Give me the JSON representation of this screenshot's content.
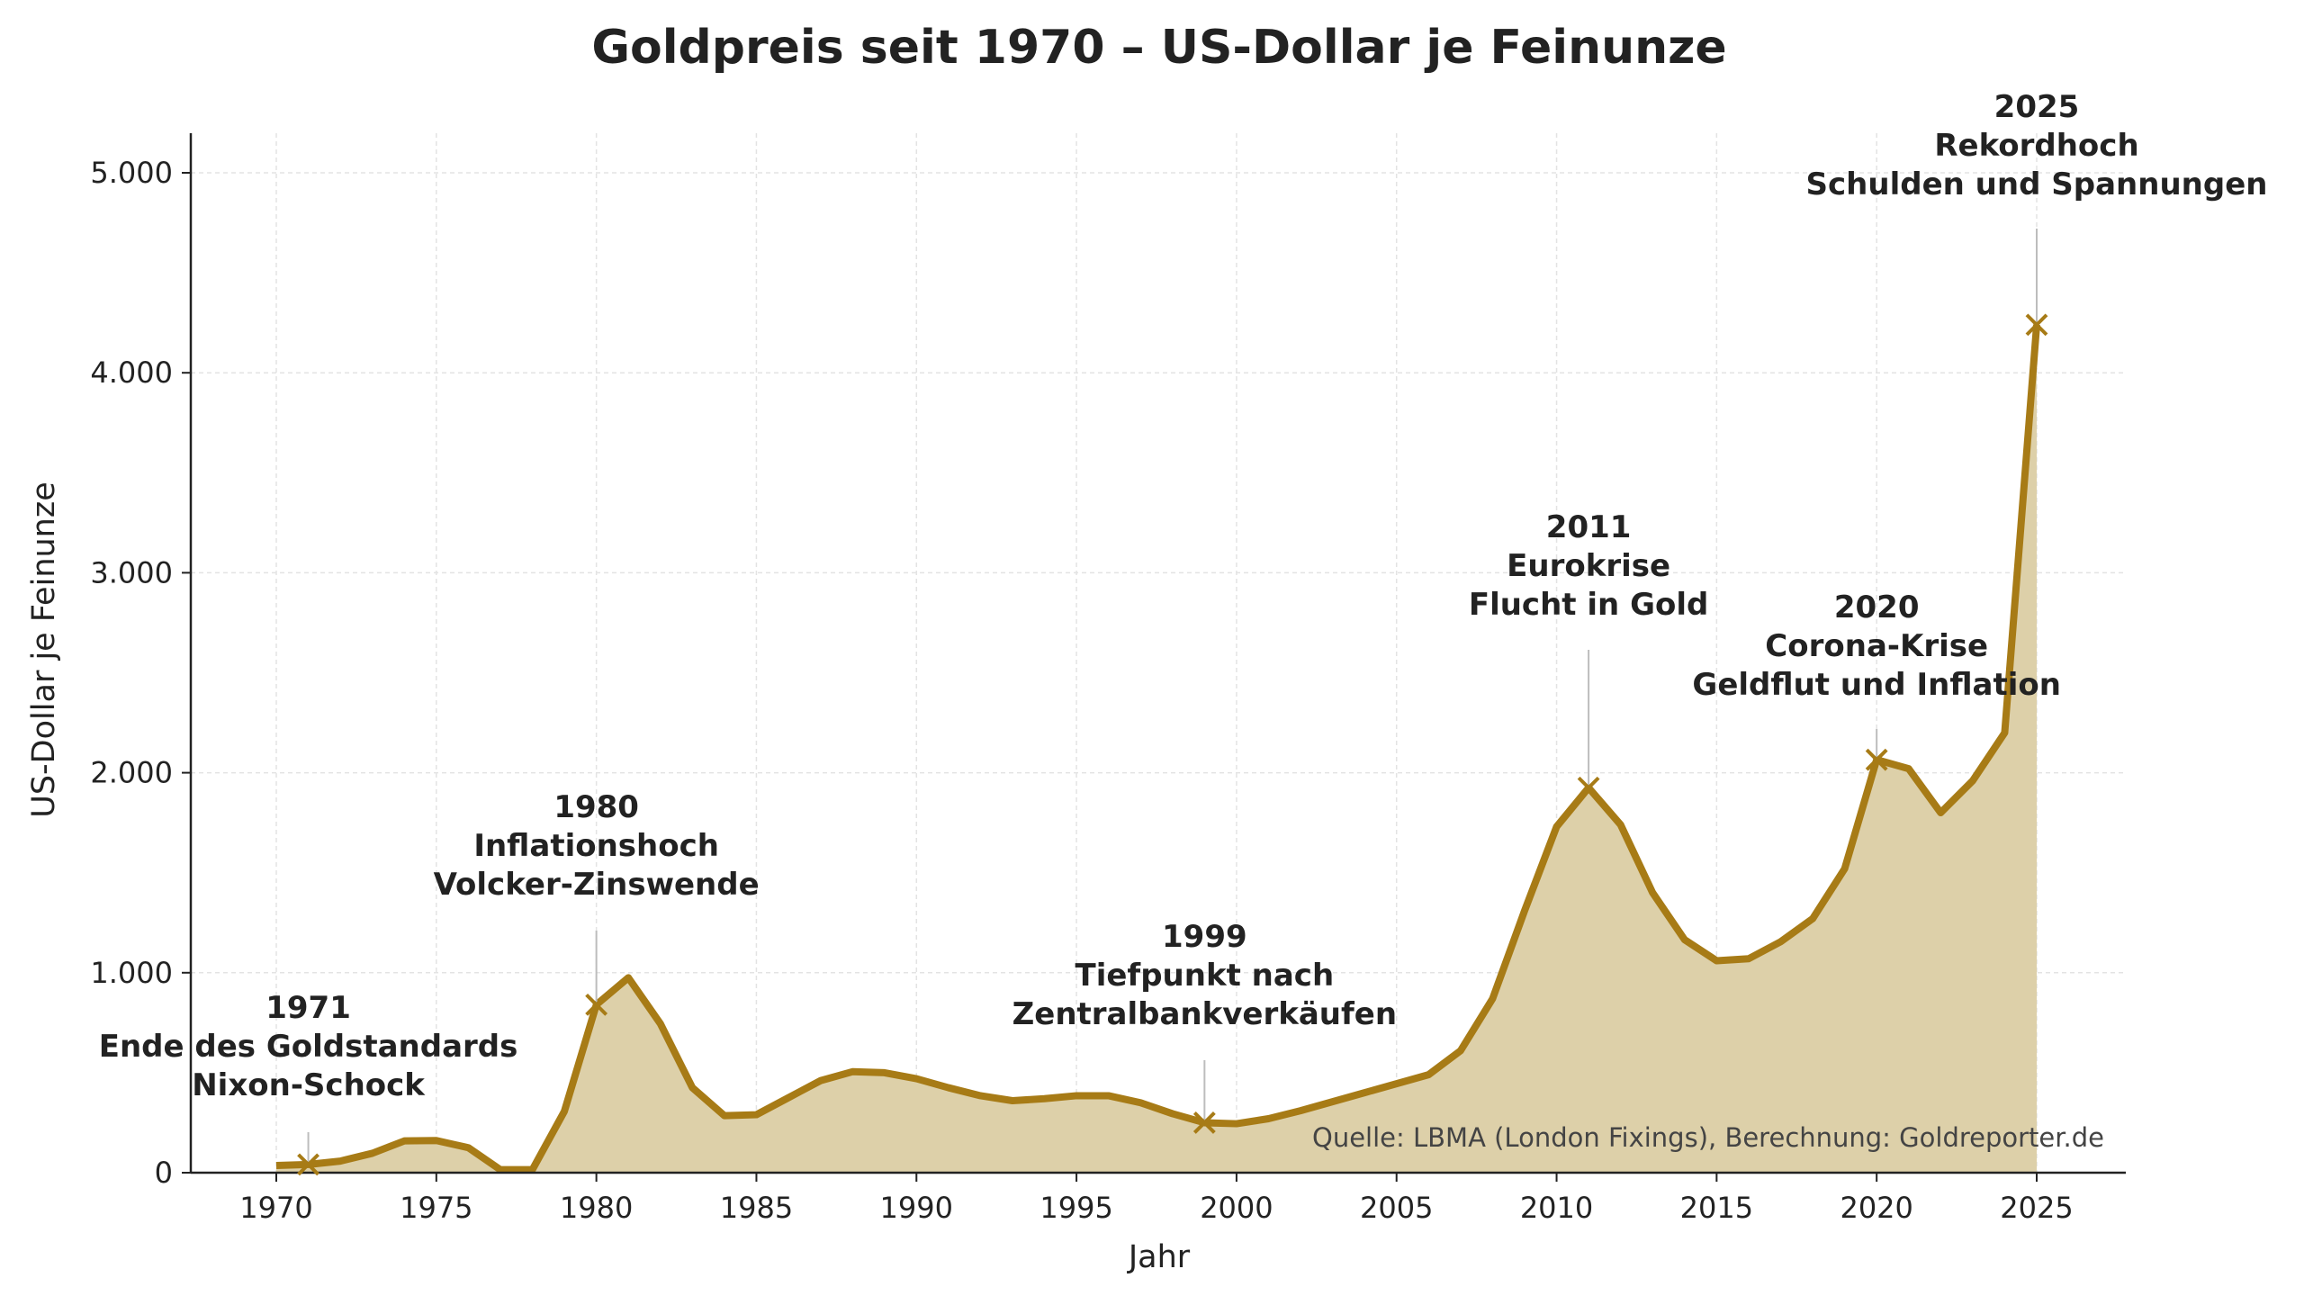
{
  "chart_data": {
    "type": "area",
    "title": "Goldpreis seit 1970 – US-Dollar je Feinunze",
    "xlabel": "Jahr",
    "ylabel": "US-Dollar je Feinunze",
    "xlim": [
      1967,
      2028
    ],
    "ylim": [
      0,
      5200
    ],
    "grid": true,
    "xticks": [
      1970,
      1975,
      1980,
      1985,
      1990,
      1995,
      2000,
      2005,
      2010,
      2015,
      2020,
      2025
    ],
    "yticks": [
      0,
      1000,
      2000,
      3000,
      4000,
      5000
    ],
    "ytick_labels": [
      "0",
      "1.000",
      "2.000",
      "3.000",
      "4.000",
      "5.000"
    ],
    "x": [
      1970,
      1971,
      1972,
      1973,
      1974,
      1975,
      1976,
      1977,
      1978,
      1979,
      1980,
      1981,
      1982,
      1983,
      1984,
      1985,
      1986,
      1987,
      1988,
      1989,
      1990,
      1991,
      1992,
      1993,
      1994,
      1995,
      1996,
      1997,
      1998,
      1999,
      2000,
      2001,
      2002,
      2003,
      2004,
      2005,
      2006,
      2007,
      2008,
      2009,
      2010,
      2011,
      2012,
      2013,
      2014,
      2015,
      2016,
      2017,
      2018,
      2019,
      2020,
      2021,
      2022,
      2023,
      2024,
      2025
    ],
    "values": [
      36,
      41,
      58,
      97,
      159,
      161,
      125,
      15,
      15,
      307,
      840,
      975,
      745,
      425,
      285,
      290,
      375,
      460,
      505,
      500,
      470,
      425,
      385,
      360,
      370,
      385,
      385,
      350,
      295,
      250,
      245,
      270,
      310,
      355,
      400,
      445,
      490,
      610,
      870,
      1310,
      1730,
      1925,
      1740,
      1400,
      1165,
      1060,
      1070,
      1155,
      1270,
      1520,
      2065,
      2020,
      1800,
      1960,
      2200,
      4240
    ],
    "series_color": "#a77b16",
    "fill_color": "#ddd0a9",
    "annotations": [
      {
        "year": 1971,
        "value": 41,
        "lines": [
          "1971",
          "Ende des Goldstandards",
          "Nixon-Schock"
        ]
      },
      {
        "year": 1980,
        "value": 840,
        "lines": [
          "1980",
          "Inflationshoch",
          "Volcker-Zinswende"
        ]
      },
      {
        "year": 1999,
        "value": 250,
        "lines": [
          "1999",
          "Tiefpunkt nach",
          "Zentralbankverkäufen"
        ]
      },
      {
        "year": 2011,
        "value": 1925,
        "lines": [
          "2011",
          "Eurokrise",
          "Flucht in Gold"
        ]
      },
      {
        "year": 2020,
        "value": 2065,
        "lines": [
          "2020",
          "Corona-Krise",
          "Geldflut und Inflation"
        ]
      },
      {
        "year": 2025,
        "value": 4240,
        "lines": [
          "2025",
          "Rekordhoch",
          "Schulden und Spannungen"
        ]
      }
    ],
    "source": "Quelle: LBMA (London Fixings), Berechnung: Goldreporter.de"
  }
}
